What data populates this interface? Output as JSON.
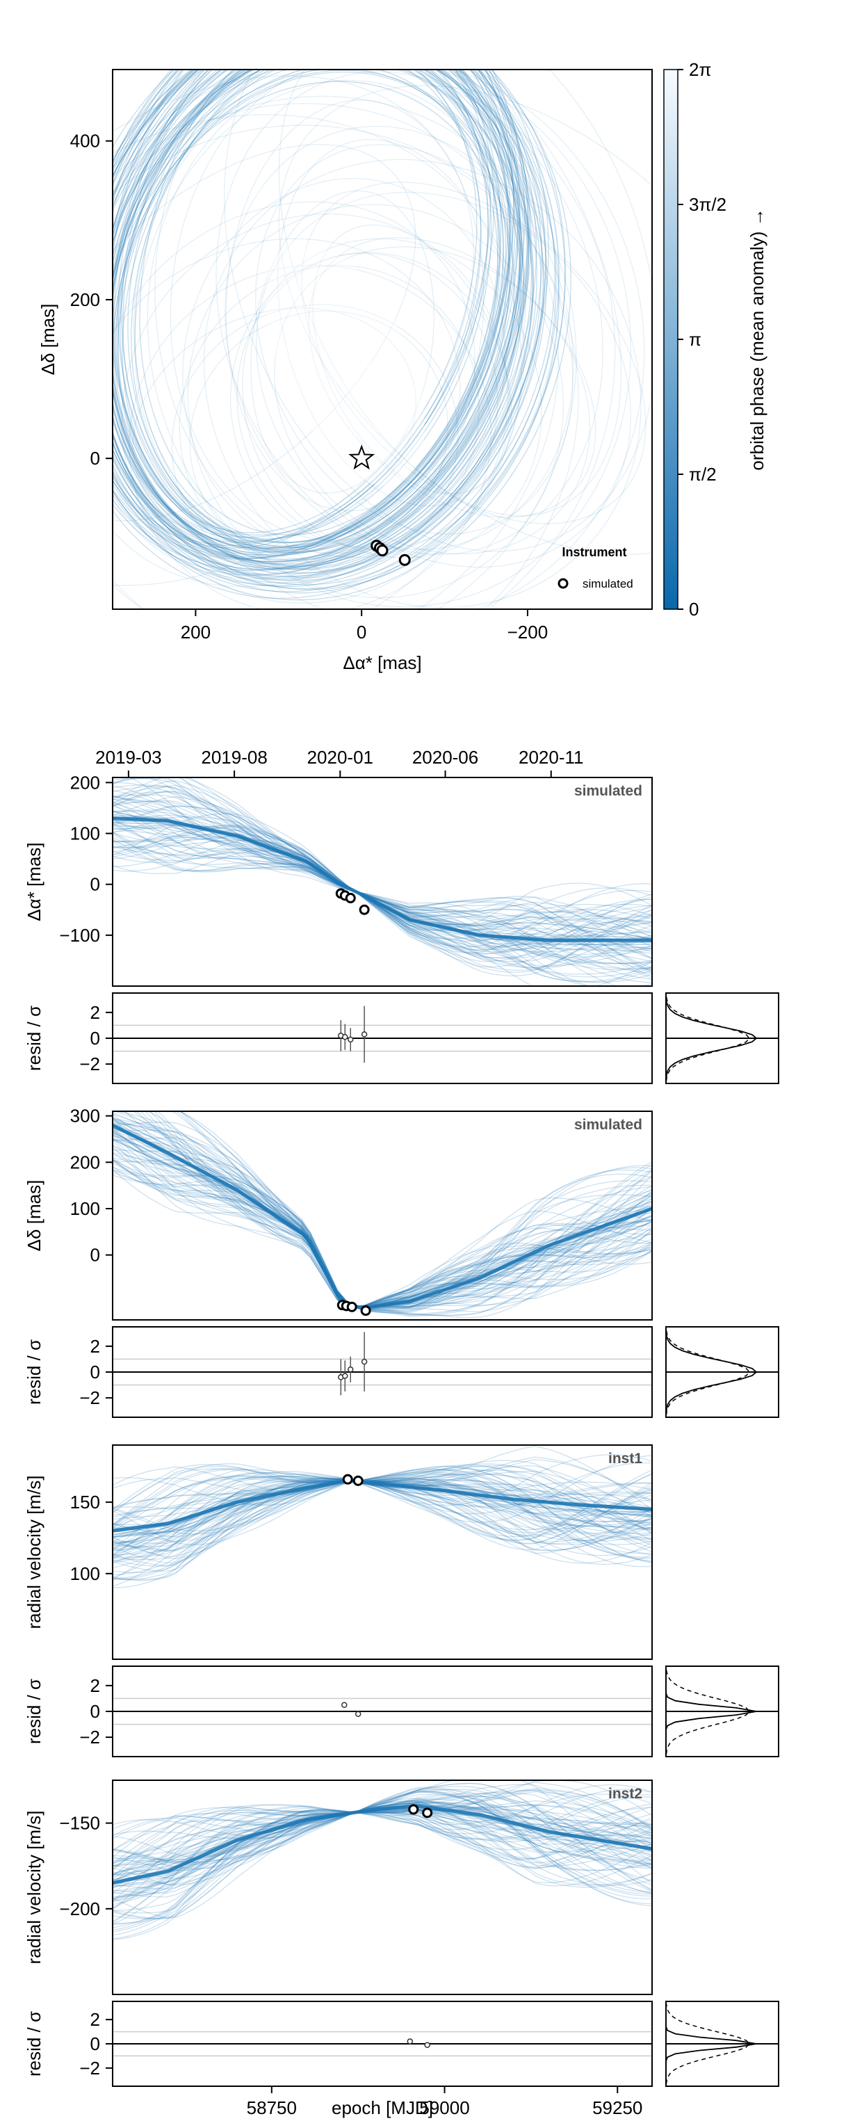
{
  "colors": {
    "accent": "#1f78b4",
    "accent_light": "#c6dbef",
    "frame": "#000000",
    "gridline": "#cccccc"
  },
  "chart_data": [
    {
      "type": "line",
      "subtype": "astrometric-orbit",
      "xlabel": "Δα* [mas]",
      "ylabel": "Δδ [mas]",
      "xlim": [
        300,
        -350
      ],
      "ylim": [
        -190,
        490
      ],
      "x_ticks": [
        200,
        0,
        -200
      ],
      "x_tick_labels": [
        "200",
        "0",
        "−200"
      ],
      "y_ticks": [
        0,
        200,
        400
      ],
      "y_tick_labels": [
        "0",
        "200",
        "400"
      ],
      "colorbar": {
        "label": "orbital phase (mean anomaly) →",
        "ticks": [
          0,
          1.5708,
          3.1416,
          4.7124,
          6.2832
        ],
        "tick_labels": [
          "0",
          "π/2",
          "π",
          "3π/2",
          "2π"
        ],
        "colormap": "white-to-blue"
      },
      "star_marker": {
        "x": 0,
        "y": 0
      },
      "observations": [
        {
          "x": -18,
          "y": -110
        },
        {
          "x": -22,
          "y": -113
        },
        {
          "x": -25,
          "y": -116
        },
        {
          "x": -52,
          "y": -128
        }
      ],
      "legend": {
        "title": "Instrument",
        "entries": [
          "simulated"
        ],
        "position": "bottom-right"
      }
    },
    {
      "type": "line",
      "subtype": "time-series-ra",
      "tag": "simulated",
      "ylabel": "Δα* [mas]",
      "xlim": [
        58520,
        59300
      ],
      "ylim": [
        -200,
        210
      ],
      "y_ticks": [
        200,
        100,
        0,
        -100
      ],
      "y_tick_labels": [
        "200",
        "100",
        "0",
        "−100"
      ],
      "top_date_ticks": [
        {
          "mjd": 58543,
          "label": "2019-03"
        },
        {
          "mjd": 58696,
          "label": "2019-08"
        },
        {
          "mjd": 58849,
          "label": "2020-01"
        },
        {
          "mjd": 59001,
          "label": "2020-06"
        },
        {
          "mjd": 59154,
          "label": "2020-11"
        }
      ],
      "series": [
        {
          "x": [
            58520,
            58600,
            58700,
            58800,
            58850,
            58880,
            58950,
            59050,
            59150,
            59300
          ],
          "y": [
            130,
            125,
            95,
            45,
            0,
            -20,
            -70,
            -100,
            -110,
            -110
          ]
        }
      ],
      "observations": [
        {
          "x": 58850,
          "y": -18
        },
        {
          "x": 58856,
          "y": -22
        },
        {
          "x": 58864,
          "y": -27
        },
        {
          "x": 58884,
          "y": -50
        }
      ]
    },
    {
      "type": "scatter",
      "subtype": "residual",
      "ylabel": "resid / σ",
      "ylim": [
        -3.5,
        3.5
      ],
      "y_ticks": [
        2,
        0,
        -2
      ],
      "y_tick_labels": [
        "2",
        "0",
        "−2"
      ],
      "points": [
        {
          "x": 58850,
          "y": 0.2,
          "err": 1.2
        },
        {
          "x": 58856,
          "y": 0.1,
          "err": 1.0
        },
        {
          "x": 58864,
          "y": -0.1,
          "err": 0.9
        },
        {
          "x": 58884,
          "y": 0.3,
          "err": 2.2
        }
      ]
    },
    {
      "type": "line",
      "subtype": "time-series-dec",
      "tag": "simulated",
      "ylabel": "Δδ [mas]",
      "ylim": [
        -140,
        310
      ],
      "y_ticks": [
        300,
        200,
        100,
        0
      ],
      "y_tick_labels": [
        "300",
        "200",
        "100",
        "0"
      ],
      "series": [
        {
          "x": [
            58520,
            58600,
            58700,
            58800,
            58850,
            58880,
            58950,
            59050,
            59150,
            59300
          ],
          "y": [
            280,
            220,
            140,
            40,
            -100,
            -115,
            -100,
            -50,
            20,
            100
          ]
        }
      ],
      "observations": [
        {
          "x": 58852,
          "y": -108
        },
        {
          "x": 58858,
          "y": -110
        },
        {
          "x": 58866,
          "y": -112
        },
        {
          "x": 58886,
          "y": -120
        }
      ]
    },
    {
      "type": "scatter",
      "subtype": "residual",
      "ylabel": "resid / σ",
      "ylim": [
        -3.5,
        3.5
      ],
      "y_ticks": [
        2,
        0,
        -2
      ],
      "y_tick_labels": [
        "2",
        "0",
        "−2"
      ],
      "points": [
        {
          "x": 58850,
          "y": -0.4,
          "err": 1.4
        },
        {
          "x": 58856,
          "y": -0.3,
          "err": 1.2
        },
        {
          "x": 58864,
          "y": 0.2,
          "err": 1.0
        },
        {
          "x": 58884,
          "y": 0.8,
          "err": 2.3
        }
      ]
    },
    {
      "type": "line",
      "subtype": "radial-velocity",
      "tag": "inst1",
      "ylabel": "radial velocity [m/s]",
      "ylim": [
        40,
        190
      ],
      "y_ticks": [
        150,
        100
      ],
      "y_tick_labels": [
        "150",
        "100"
      ],
      "series": [
        {
          "x": [
            58520,
            58600,
            58700,
            58800,
            58860,
            58900,
            59000,
            59100,
            59200,
            59300
          ],
          "y": [
            130,
            135,
            150,
            160,
            165,
            163,
            158,
            152,
            148,
            145
          ]
        }
      ],
      "observations": [
        {
          "x": 58860,
          "y": 166
        },
        {
          "x": 58875,
          "y": 165
        }
      ]
    },
    {
      "type": "scatter",
      "subtype": "residual",
      "ylabel": "resid / σ",
      "ylim": [
        -3.5,
        3.5
      ],
      "y_ticks": [
        2,
        0,
        -2
      ],
      "y_tick_labels": [
        "2",
        "0",
        "−2"
      ],
      "points": [
        {
          "x": 58855,
          "y": 0.5,
          "err": 0.2
        },
        {
          "x": 58875,
          "y": -0.2,
          "err": 0.2
        }
      ]
    },
    {
      "type": "line",
      "subtype": "radial-velocity",
      "tag": "inst2",
      "ylabel": "radial velocity [m/s]",
      "ylim": [
        -250,
        -125
      ],
      "y_ticks": [
        -150,
        -200
      ],
      "y_tick_labels": [
        "−150",
        "−200"
      ],
      "series": [
        {
          "x": [
            58520,
            58600,
            58700,
            58800,
            58900,
            58960,
            59050,
            59150,
            59300
          ],
          "y": [
            -185,
            -178,
            -160,
            -148,
            -142,
            -140,
            -145,
            -155,
            -165
          ]
        }
      ],
      "observations": [
        {
          "x": 58955,
          "y": -142
        },
        {
          "x": 58975,
          "y": -144
        }
      ]
    },
    {
      "type": "scatter",
      "subtype": "residual",
      "ylabel": "resid / σ",
      "xlabel": "epoch [MJD]",
      "ylim": [
        -3.5,
        3.5
      ],
      "y_ticks": [
        2,
        0,
        -2
      ],
      "y_tick_labels": [
        "2",
        "0",
        "−2"
      ],
      "x_ticks": [
        58750,
        59000,
        59250
      ],
      "x_tick_labels": [
        "58750",
        "59000",
        "59250"
      ],
      "points": [
        {
          "x": 58950,
          "y": 0.2,
          "err": 0.2
        },
        {
          "x": 58975,
          "y": -0.1,
          "err": 0.2
        }
      ]
    }
  ]
}
